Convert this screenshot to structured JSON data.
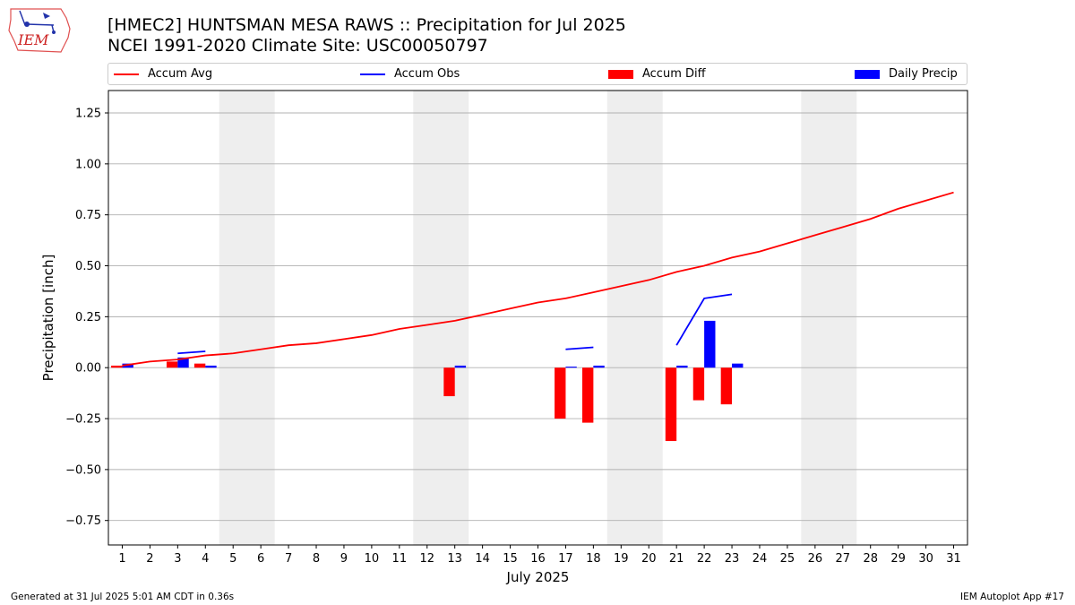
{
  "header": {
    "title_line1": "[HMEC2] HUNTSMAN MESA RAWS :: Precipitation for Jul 2025",
    "title_line2": "NCEI 1991-2020 Climate Site: USC00050797"
  },
  "logo": {
    "text": "IEM",
    "icon": "iem-iowa-logo-icon"
  },
  "footer": {
    "left": "Generated at 31 Jul 2025 5:01 AM CDT in 0.36s",
    "right": "IEM Autoplot App #17"
  },
  "colors": {
    "accum_avg": "#ff0000",
    "accum_obs": "#0000ff",
    "accum_diff": "#ff0000",
    "daily_precip": "#0000ff",
    "weekend_shade": "#eeeeee",
    "grid": "#b0b0b0"
  },
  "chart_data": {
    "type": "bar",
    "xlabel": "July 2025",
    "ylabel": "Precipitation [inch]",
    "xlim": [
      0.5,
      31.5
    ],
    "ylim": [
      -0.87,
      1.36
    ],
    "x_ticks": [
      1,
      2,
      3,
      4,
      5,
      6,
      7,
      8,
      9,
      10,
      11,
      12,
      13,
      14,
      15,
      16,
      17,
      18,
      19,
      20,
      21,
      22,
      23,
      24,
      25,
      26,
      27,
      28,
      29,
      30,
      31
    ],
    "y_ticks": [
      -0.75,
      -0.5,
      -0.25,
      0.0,
      0.25,
      0.5,
      0.75,
      1.0,
      1.25
    ],
    "y_tick_labels": [
      "−0.75",
      "−0.50",
      "−0.25",
      "0.00",
      "0.25",
      "0.50",
      "0.75",
      "1.00",
      "1.25"
    ],
    "grid": "horizontal",
    "legend_position": "top",
    "weekend_spans": [
      [
        5,
        6
      ],
      [
        12,
        13
      ],
      [
        19,
        20
      ],
      [
        26,
        27
      ]
    ],
    "legend": [
      "Accum Avg",
      "Accum Obs",
      "Accum Diff",
      "Daily Precip"
    ],
    "series": [
      {
        "name": "Accum Avg",
        "kind": "line",
        "x": [
          1,
          2,
          3,
          4,
          5,
          6,
          7,
          8,
          9,
          10,
          11,
          12,
          13,
          14,
          15,
          16,
          17,
          18,
          19,
          20,
          21,
          22,
          23,
          24,
          25,
          26,
          27,
          28,
          29,
          30,
          31
        ],
        "values": [
          0.01,
          0.03,
          0.04,
          0.06,
          0.07,
          0.09,
          0.11,
          0.12,
          0.14,
          0.16,
          0.19,
          0.21,
          0.23,
          0.26,
          0.29,
          0.32,
          0.34,
          0.37,
          0.4,
          0.43,
          0.47,
          0.5,
          0.54,
          0.57,
          0.61,
          0.65,
          0.69,
          0.73,
          0.78,
          0.82,
          0.86
        ]
      },
      {
        "name": "Accum Obs",
        "kind": "line_segments",
        "segments": [
          {
            "x": [
              3,
              4
            ],
            "values": [
              0.07,
              0.08
            ]
          },
          {
            "x": [
              17,
              18
            ],
            "values": [
              0.09,
              0.1
            ]
          },
          {
            "x": [
              21,
              22,
              23
            ],
            "values": [
              0.11,
              0.34,
              0.36
            ]
          }
        ]
      },
      {
        "name": "Accum Diff",
        "kind": "bar",
        "x": [
          1,
          3,
          4,
          13,
          17,
          18,
          21,
          22,
          23
        ],
        "values": [
          0.01,
          0.03,
          0.02,
          -0.14,
          -0.25,
          -0.27,
          -0.36,
          -0.16,
          -0.18
        ]
      },
      {
        "name": "Daily Precip",
        "kind": "bar",
        "x": [
          1,
          3,
          4,
          13,
          17,
          18,
          21,
          22,
          23
        ],
        "values": [
          0.02,
          0.05,
          0.01,
          0.01,
          0.005,
          0.01,
          0.01,
          0.23,
          0.02
        ]
      }
    ]
  }
}
